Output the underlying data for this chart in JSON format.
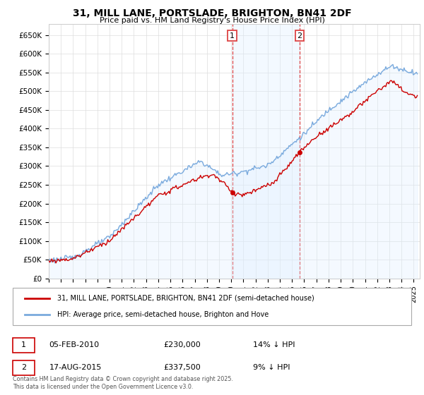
{
  "title": "31, MILL LANE, PORTSLADE, BRIGHTON, BN41 2DF",
  "subtitle": "Price paid vs. HM Land Registry's House Price Index (HPI)",
  "ylim": [
    0,
    680000
  ],
  "yticks": [
    0,
    50000,
    100000,
    150000,
    200000,
    250000,
    300000,
    350000,
    400000,
    450000,
    500000,
    550000,
    600000,
    650000
  ],
  "xlim_start": 1995.0,
  "xlim_end": 2025.5,
  "transaction1": {
    "date_num": 2010.09,
    "price": 230000,
    "label": "1",
    "date_str": "05-FEB-2010",
    "pct": "14% ↓ HPI"
  },
  "transaction2": {
    "date_num": 2015.62,
    "price": 337500,
    "label": "2",
    "date_str": "17-AUG-2015",
    "pct": "9% ↓ HPI"
  },
  "line_red_color": "#cc0000",
  "line_blue_color": "#7aaadd",
  "fill_blue_color": "#ddeeff",
  "vline_color": "#dd4444",
  "vspan_color": "#ddeeff",
  "marker_color": "#cc0000",
  "footnote": "Contains HM Land Registry data © Crown copyright and database right 2025.\nThis data is licensed under the Open Government Licence v3.0.",
  "legend_label_red": "31, MILL LANE, PORTSLADE, BRIGHTON, BN41 2DF (semi-detached house)",
  "legend_label_blue": "HPI: Average price, semi-detached house, Brighton and Hove",
  "box1_date": "05-FEB-2010",
  "box1_price": "£230,000",
  "box1_pct": "14% ↓ HPI",
  "box2_date": "17-AUG-2015",
  "box2_price": "£337,500",
  "box2_pct": "9% ↓ HPI"
}
